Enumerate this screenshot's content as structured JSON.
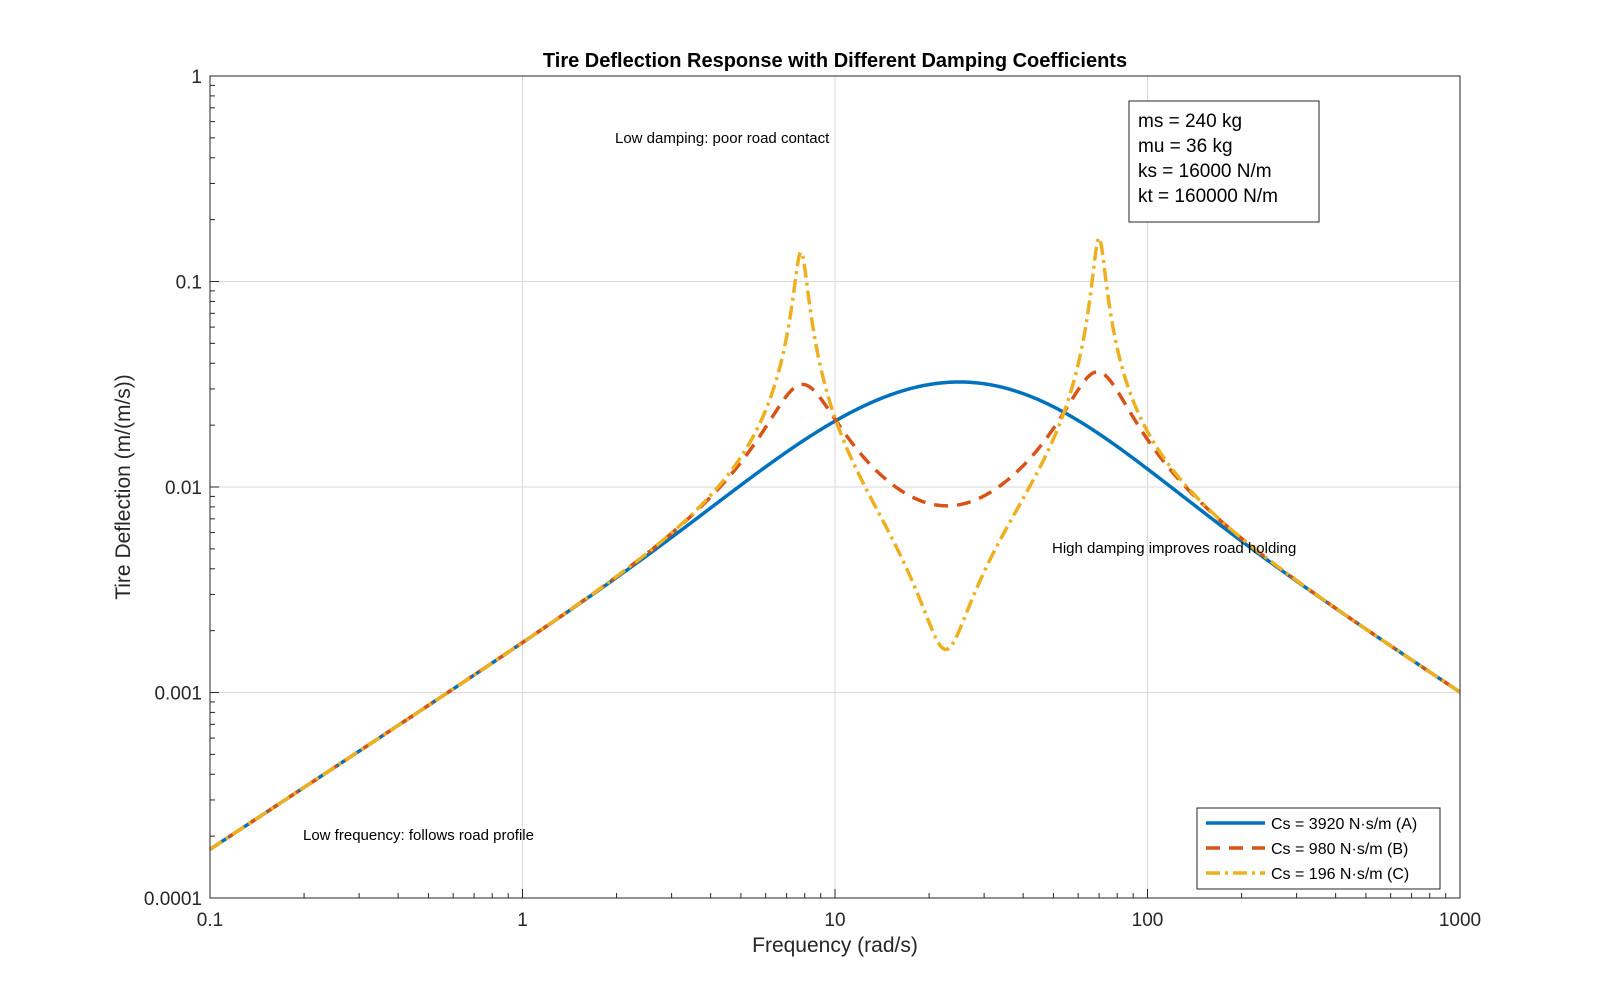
{
  "chart_data": {
    "type": "line",
    "title": "Tire Deflection Response with Different Damping Coefficients",
    "xlabel": "Frequency (rad/s)",
    "ylabel": "Tire Deflection (m/(m/s))",
    "xscale": "log",
    "yscale": "log",
    "xlim": [
      0.1,
      1000
    ],
    "ylim": [
      0.0001,
      1
    ],
    "x_ticks": [
      "0.1",
      "1",
      "10",
      "100",
      "1000"
    ],
    "y_ticks": [
      "0.0001",
      "0.001",
      "0.01",
      "0.1",
      "1"
    ],
    "grid": true,
    "legend_position": "bottom-right",
    "parameters": [
      "ms = 240 kg",
      "mu = 36 kg",
      "ks = 16000 N/m",
      "kt = 160000 N/m"
    ],
    "annotations": {
      "low_damping": "Low damping: poor road contact",
      "high_damping": "High damping improves road holding",
      "low_frequency": "Low frequency: follows road profile"
    },
    "model": {
      "ms": 240,
      "mu": 36,
      "ks": 16000,
      "kt": 160000
    },
    "series": [
      {
        "name": "Cs = 3920 N·s/m (A)",
        "cs": 3920,
        "color": "#0072BD",
        "style": "solid",
        "x": [
          0.1,
          1,
          5,
          10,
          25,
          50,
          100,
          1000
        ],
        "y": [
          0.000177,
          0.00177,
          0.0098,
          0.0206,
          0.0323,
          0.0259,
          0.0124,
          0.00102
        ]
      },
      {
        "name": "Cs = 980 N·s/m (B)",
        "cs": 980,
        "color": "#D95319",
        "style": "dashed",
        "x": [
          0.1,
          1,
          7.6,
          10,
          22,
          69,
          100,
          1000
        ],
        "y": [
          0.000177,
          0.00177,
          0.032,
          0.02,
          0.0081,
          0.036,
          0.015,
          0.00102
        ]
      },
      {
        "name": "Cs = 196 N·s/m (C)",
        "cs": 196,
        "color": "#EDB120",
        "style": "dashdot",
        "x": [
          0.1,
          1,
          7.7,
          10,
          22,
          69,
          100,
          1000
        ],
        "y": [
          0.000177,
          0.00177,
          0.135,
          0.02,
          0.0016,
          0.16,
          0.015,
          0.00102
        ]
      }
    ]
  }
}
